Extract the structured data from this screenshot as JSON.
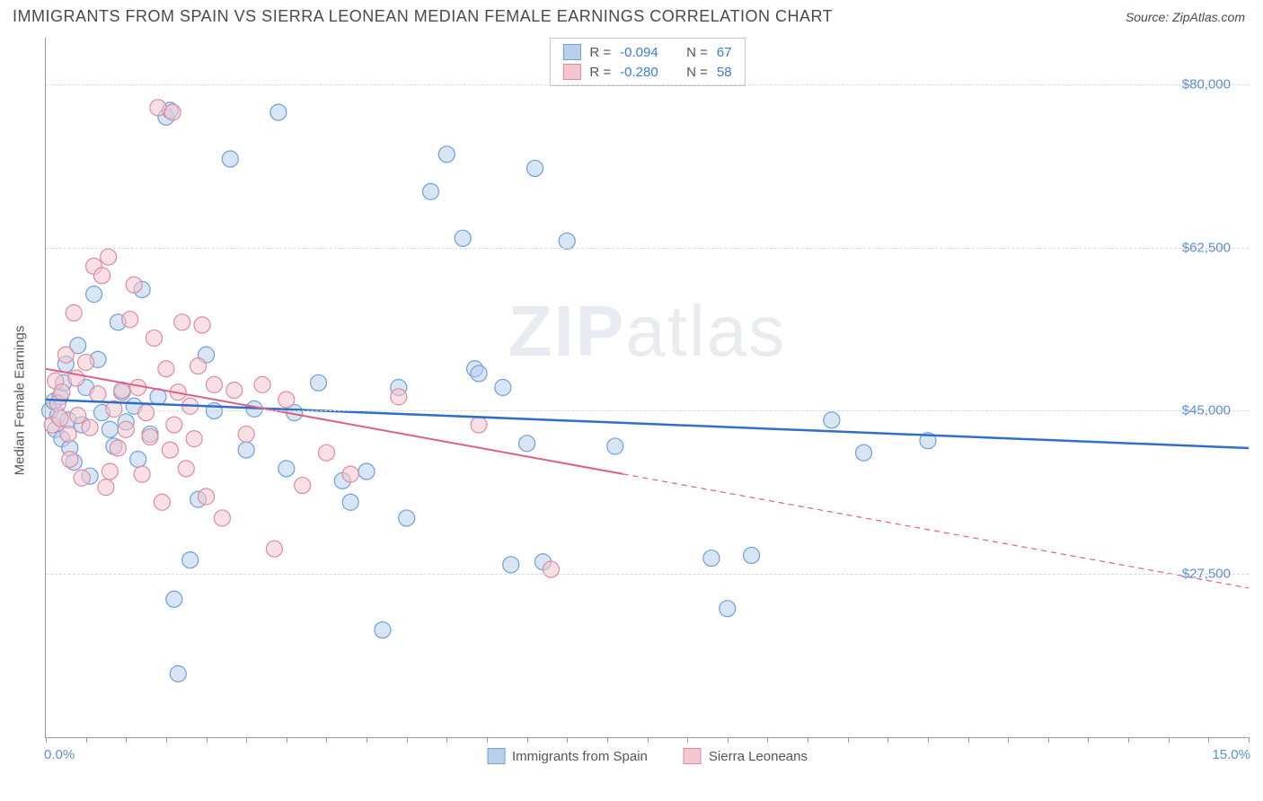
{
  "header": {
    "title": "IMMIGRANTS FROM SPAIN VS SIERRA LEONEAN MEDIAN FEMALE EARNINGS CORRELATION CHART",
    "source_label": "Source: ",
    "source_value": "ZipAtlas.com"
  },
  "watermark": {
    "bold": "ZIP",
    "rest": "atlas"
  },
  "chart": {
    "type": "scatter",
    "y_axis": {
      "label": "Median Female Earnings",
      "min": 10000,
      "max": 85000,
      "ticks": [
        27500,
        45000,
        62500,
        80000
      ],
      "tick_labels": [
        "$27,500",
        "$45,000",
        "$62,500",
        "$80,000"
      ],
      "label_color": "#5a8fd6",
      "axis_label_color": "#555555",
      "fontsize": 15
    },
    "x_axis": {
      "min": 0.0,
      "max": 15.0,
      "ticks_minor_step": 0.5,
      "end_labels": [
        "0.0%",
        "15.0%"
      ],
      "label_color": "#5a8fd6",
      "fontsize": 15
    },
    "grid_color": "#d9d9d9",
    "background_color": "#ffffff",
    "series": [
      {
        "id": "spain",
        "label": "Immigrants from Spain",
        "color_fill": "#b8d0ec",
        "color_stroke": "#6f9fd8",
        "marker_radius": 9,
        "fill_opacity": 0.55,
        "R": "-0.094",
        "N": "67",
        "trend": {
          "y_at_xmin": 46200,
          "y_at_xmax": 41000,
          "color": "#2f6fc9",
          "width": 2.5,
          "solid_until_x": 15.0
        },
        "points": [
          [
            0.05,
            45000
          ],
          [
            0.1,
            46000
          ],
          [
            0.12,
            43000
          ],
          [
            0.15,
            44500
          ],
          [
            0.18,
            46500
          ],
          [
            0.2,
            42000
          ],
          [
            0.22,
            48000
          ],
          [
            0.25,
            50000
          ],
          [
            0.28,
            44000
          ],
          [
            0.3,
            41000
          ],
          [
            0.35,
            39500
          ],
          [
            0.4,
            52000
          ],
          [
            0.45,
            43500
          ],
          [
            0.5,
            47500
          ],
          [
            0.55,
            38000
          ],
          [
            0.6,
            57500
          ],
          [
            0.65,
            50500
          ],
          [
            0.7,
            44800
          ],
          [
            0.8,
            43000
          ],
          [
            0.85,
            41200
          ],
          [
            0.9,
            54500
          ],
          [
            0.95,
            47000
          ],
          [
            1.0,
            43800
          ],
          [
            1.1,
            45500
          ],
          [
            1.15,
            39800
          ],
          [
            1.2,
            58000
          ],
          [
            1.3,
            42500
          ],
          [
            1.4,
            46500
          ],
          [
            1.5,
            76500
          ],
          [
            1.55,
            77200
          ],
          [
            1.6,
            24800
          ],
          [
            1.65,
            16800
          ],
          [
            1.8,
            29000
          ],
          [
            1.9,
            35500
          ],
          [
            2.0,
            51000
          ],
          [
            2.1,
            45000
          ],
          [
            2.3,
            72000
          ],
          [
            2.5,
            40800
          ],
          [
            2.6,
            45200
          ],
          [
            2.9,
            77000
          ],
          [
            3.0,
            38800
          ],
          [
            3.1,
            44800
          ],
          [
            3.4,
            48000
          ],
          [
            3.7,
            37500
          ],
          [
            3.8,
            35200
          ],
          [
            4.0,
            38500
          ],
          [
            4.2,
            21500
          ],
          [
            4.4,
            47500
          ],
          [
            4.5,
            33500
          ],
          [
            4.8,
            68500
          ],
          [
            5.0,
            72500
          ],
          [
            5.2,
            63500
          ],
          [
            5.35,
            49500
          ],
          [
            5.4,
            49000
          ],
          [
            5.7,
            47500
          ],
          [
            5.8,
            28500
          ],
          [
            6.0,
            41500
          ],
          [
            6.1,
            71000
          ],
          [
            6.2,
            28800
          ],
          [
            6.5,
            63200
          ],
          [
            7.1,
            41200
          ],
          [
            8.3,
            29200
          ],
          [
            8.5,
            23800
          ],
          [
            8.8,
            29500
          ],
          [
            9.8,
            44000
          ],
          [
            10.2,
            40500
          ],
          [
            11.0,
            41800
          ]
        ]
      },
      {
        "id": "sierra",
        "label": "Sierra Leoneans",
        "color_fill": "#f4c6d0",
        "color_stroke": "#e08aa0",
        "marker_radius": 9,
        "fill_opacity": 0.55,
        "R": "-0.280",
        "N": "58",
        "trend": {
          "y_at_xmin": 49500,
          "y_at_xmax": 26000,
          "color": "#de5f86",
          "width": 2,
          "solid_until_x": 7.2
        },
        "points": [
          [
            0.08,
            43500
          ],
          [
            0.12,
            48200
          ],
          [
            0.15,
            45800
          ],
          [
            0.18,
            44200
          ],
          [
            0.2,
            47000
          ],
          [
            0.25,
            51000
          ],
          [
            0.28,
            42500
          ],
          [
            0.3,
            39800
          ],
          [
            0.35,
            55500
          ],
          [
            0.38,
            48500
          ],
          [
            0.4,
            44500
          ],
          [
            0.45,
            37800
          ],
          [
            0.5,
            50200
          ],
          [
            0.55,
            43200
          ],
          [
            0.6,
            60500
          ],
          [
            0.65,
            46800
          ],
          [
            0.7,
            59500
          ],
          [
            0.75,
            36800
          ],
          [
            0.78,
            61500
          ],
          [
            0.8,
            38500
          ],
          [
            0.85,
            45200
          ],
          [
            0.9,
            41000
          ],
          [
            0.95,
            47200
          ],
          [
            1.0,
            43000
          ],
          [
            1.05,
            54800
          ],
          [
            1.1,
            58500
          ],
          [
            1.15,
            47500
          ],
          [
            1.2,
            38200
          ],
          [
            1.25,
            44800
          ],
          [
            1.3,
            42200
          ],
          [
            1.35,
            52800
          ],
          [
            1.4,
            77500
          ],
          [
            1.45,
            35200
          ],
          [
            1.5,
            49500
          ],
          [
            1.55,
            40800
          ],
          [
            1.58,
            77000
          ],
          [
            1.6,
            43500
          ],
          [
            1.65,
            47000
          ],
          [
            1.7,
            54500
          ],
          [
            1.75,
            38800
          ],
          [
            1.8,
            45500
          ],
          [
            1.85,
            42000
          ],
          [
            1.9,
            49800
          ],
          [
            1.95,
            54200
          ],
          [
            2.0,
            35800
          ],
          [
            2.1,
            47800
          ],
          [
            2.2,
            33500
          ],
          [
            2.35,
            47200
          ],
          [
            2.5,
            42500
          ],
          [
            2.7,
            47800
          ],
          [
            2.85,
            30200
          ],
          [
            3.0,
            46200
          ],
          [
            3.2,
            37000
          ],
          [
            3.5,
            40500
          ],
          [
            3.8,
            38200
          ],
          [
            4.4,
            46500
          ],
          [
            5.4,
            43500
          ],
          [
            6.3,
            28000
          ]
        ]
      }
    ],
    "legend_top": {
      "R_label": "R =",
      "N_label": "N ="
    },
    "legend_bottom_labels": [
      "Immigrants from Spain",
      "Sierra Leoneans"
    ]
  }
}
